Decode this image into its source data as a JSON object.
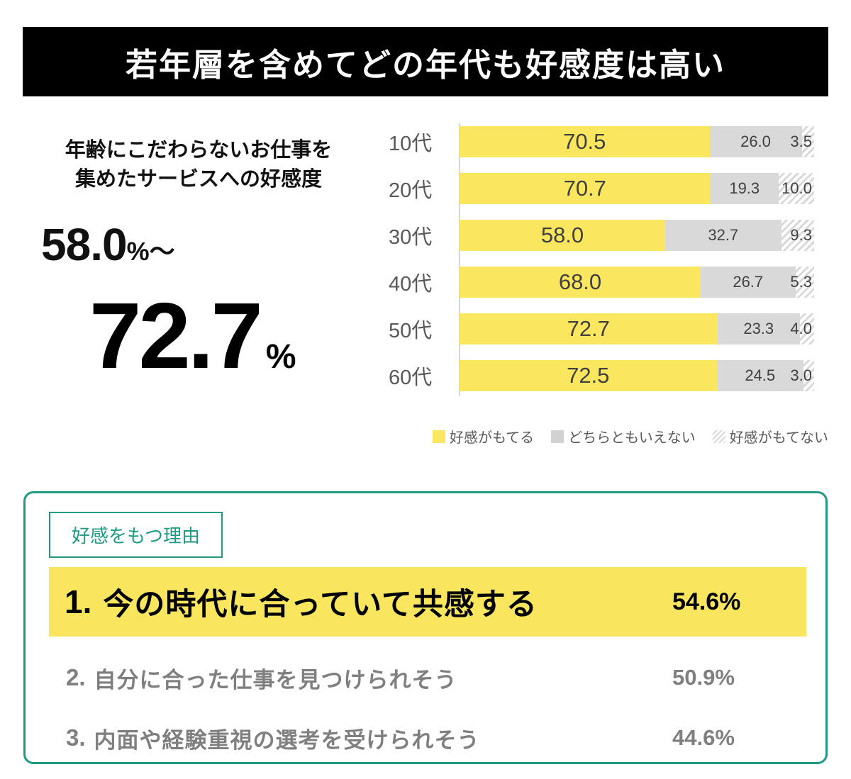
{
  "header": {
    "title": "若年層を含めてどの年代も好感度は高い"
  },
  "summary": {
    "caption_line1": "年齢にこだわらないお仕事を",
    "caption_line2": "集めたサービスへの好感度",
    "range_min": "58.0",
    "range_suffix": "%〜",
    "big_value": "72.7",
    "big_unit": "%"
  },
  "chart_data": {
    "type": "bar",
    "orientation": "horizontal",
    "stacked": true,
    "title": "年齢にこだわらないお仕事を集めたサービスへの好感度",
    "categories": [
      "10代",
      "20代",
      "30代",
      "40代",
      "50代",
      "60代"
    ],
    "series": [
      {
        "name": "好感がもてる",
        "color": "#FBE65F",
        "values": [
          70.5,
          70.7,
          58.0,
          68.0,
          72.7,
          72.5
        ],
        "labels": [
          "70.5",
          "70.7",
          "58.0",
          "68.0",
          "72.7",
          "72.5"
        ]
      },
      {
        "name": "どちらともいえない",
        "color": "#D9D9D9",
        "values": [
          26.0,
          19.3,
          32.7,
          26.7,
          23.3,
          24.5
        ],
        "labels": [
          "26.0",
          "19.3",
          "32.7",
          "26.7",
          "23.3",
          "24.5"
        ]
      },
      {
        "name": "好感がもてない",
        "color": "hatched-diagonal-gray",
        "values": [
          3.5,
          10.0,
          9.3,
          5.3,
          4.0,
          3.0
        ],
        "labels": [
          "3.5",
          "10.0",
          "9.3",
          "5.3",
          "4.0",
          "3.0"
        ]
      }
    ],
    "xlim": [
      0,
      100
    ],
    "unit": "%",
    "grid": false,
    "legend_position": "bottom-right"
  },
  "reasons": {
    "box_label": "好感をもつ理由",
    "items": [
      {
        "rank": "1.",
        "text": "今の時代に合っていて共感する",
        "value": "54.6%"
      },
      {
        "rank": "2.",
        "text": "自分に合った仕事を見つけられそう",
        "value": "50.9%"
      },
      {
        "rank": "3.",
        "text": "内面や経験重視の選考を受けられそう",
        "value": "44.6%"
      }
    ]
  },
  "colors": {
    "header_bg": "#000000",
    "accent_yellow": "#FBE65F",
    "neutral_gray": "#D9D9D9",
    "teal_border": "#1E9B82",
    "bar_value_text": "#404040",
    "axis_label_text": "#595959",
    "sub_reason_text": "#7F7F7F"
  }
}
